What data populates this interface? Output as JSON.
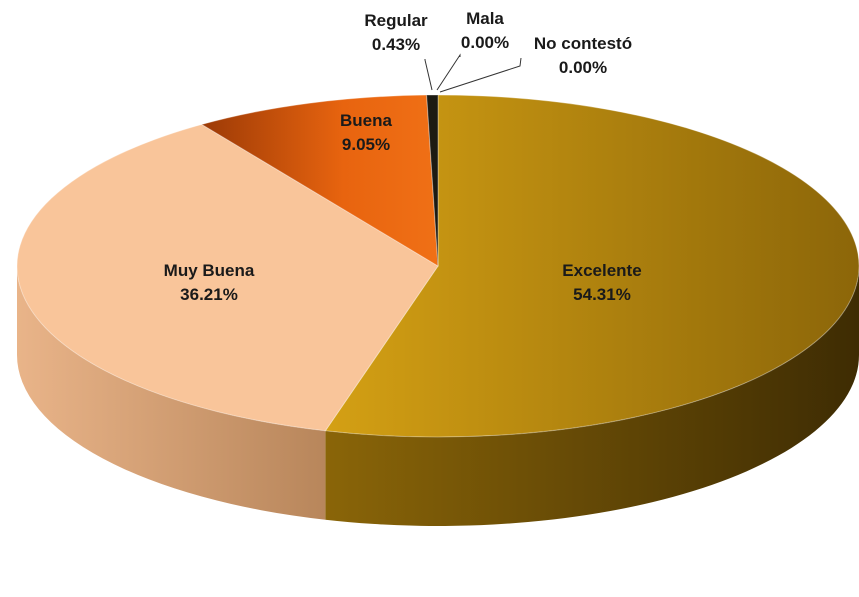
{
  "chart_data": {
    "type": "pie",
    "style": "3d",
    "title": "",
    "slices": [
      {
        "label": "Excelente",
        "value_text": "54.31%",
        "value": 54.31,
        "color": "#c7960f"
      },
      {
        "label": "Muy Buena",
        "value_text": "36.21%",
        "value": 36.21,
        "color": "#f9c59a"
      },
      {
        "label": "Buena",
        "value_text": "9.05%",
        "value": 9.05,
        "color": "#e8640f"
      },
      {
        "label": "Regular",
        "value_text": "0.43%",
        "value": 0.43,
        "color": "#1c1a12"
      },
      {
        "label": "Mala",
        "value_text": "0.00%",
        "value": 0.0,
        "color": "#3a3020"
      },
      {
        "label": "No contestó",
        "value_text": "0.00%",
        "value": 0.0,
        "color": "#555555"
      }
    ]
  }
}
